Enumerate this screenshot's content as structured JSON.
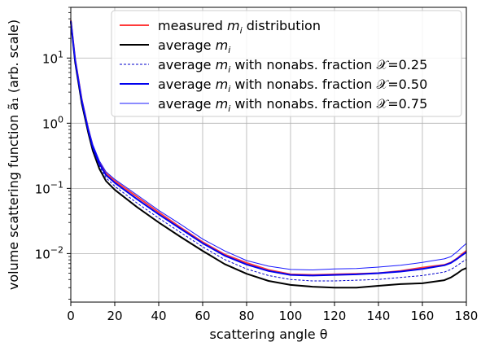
{
  "chart_data": {
    "type": "line",
    "xlabel": "scattering angle θ",
    "ylabel": "volume scattering function ã₁ (arb. scale)",
    "xlim": [
      0,
      180
    ],
    "ylim": [
      0.0018,
      60
    ],
    "y_scale": "log",
    "grid": true,
    "legend_position": "top-right",
    "x_ticks": [
      0,
      20,
      40,
      60,
      80,
      100,
      120,
      140,
      160,
      180
    ],
    "y_ticks": [
      {
        "value": 0.01,
        "base": "10",
        "exp": "−2"
      },
      {
        "value": 0.1,
        "base": "10",
        "exp": "−1"
      },
      {
        "value": 1,
        "base": "10",
        "exp": "0"
      },
      {
        "value": 10,
        "base": "10",
        "exp": "1"
      }
    ],
    "series": [
      {
        "name": "measured mᵢ distribution",
        "legend": {
          "pre": "measured ",
          "var": "m",
          "sub": "i",
          "post": " distribution"
        },
        "color": "#ff3b3b",
        "width": 2.0,
        "dash": "",
        "x": [
          0,
          2,
          5,
          8,
          10,
          13,
          16,
          20,
          30,
          40,
          50,
          60,
          70,
          80,
          90,
          100,
          110,
          120,
          130,
          140,
          150,
          160,
          165,
          170,
          173,
          176,
          178,
          180
        ],
        "y": [
          38,
          9.5,
          2.3,
          0.8,
          0.45,
          0.25,
          0.17,
          0.13,
          0.075,
          0.043,
          0.025,
          0.015,
          0.0097,
          0.0072,
          0.0056,
          0.0048,
          0.0047,
          0.0048,
          0.0049,
          0.005,
          0.0054,
          0.0061,
          0.0064,
          0.0067,
          0.0073,
          0.0085,
          0.0098,
          0.011
        ]
      },
      {
        "name": "average mᵢ",
        "legend": {
          "pre": "average ",
          "var": "m",
          "sub": "i",
          "post": ""
        },
        "color": "#000000",
        "width": 2.0,
        "dash": "",
        "x": [
          0,
          2,
          5,
          8,
          10,
          13,
          16,
          20,
          30,
          40,
          50,
          60,
          70,
          80,
          90,
          100,
          110,
          120,
          130,
          140,
          150,
          160,
          165,
          170,
          173,
          176,
          178,
          180
        ],
        "y": [
          36,
          8.5,
          2.0,
          0.7,
          0.38,
          0.2,
          0.13,
          0.095,
          0.052,
          0.03,
          0.018,
          0.011,
          0.0069,
          0.0049,
          0.0038,
          0.0033,
          0.0031,
          0.003,
          0.003,
          0.0032,
          0.0034,
          0.0035,
          0.0037,
          0.0039,
          0.0043,
          0.005,
          0.0056,
          0.006
        ]
      },
      {
        "name": "average mᵢ with nonabs. fraction 𝒳=0.25",
        "legend": {
          "pre": "average ",
          "var": "m",
          "sub": "i",
          "post": " with nonabs. fraction 𝒳=0.25"
        },
        "color": "#0000cc",
        "width": 1.0,
        "dash": "3,2",
        "x": [
          0,
          2,
          5,
          8,
          10,
          13,
          16,
          20,
          30,
          40,
          50,
          60,
          70,
          80,
          90,
          100,
          110,
          120,
          130,
          140,
          150,
          160,
          165,
          170,
          173,
          176,
          178,
          180
        ],
        "y": [
          36.5,
          8.8,
          2.1,
          0.73,
          0.4,
          0.22,
          0.145,
          0.108,
          0.06,
          0.035,
          0.021,
          0.0127,
          0.0081,
          0.0058,
          0.0046,
          0.004,
          0.0038,
          0.0038,
          0.0039,
          0.004,
          0.0043,
          0.0046,
          0.0049,
          0.0052,
          0.0057,
          0.0066,
          0.0074,
          0.0081
        ]
      },
      {
        "name": "average mᵢ with nonabs. fraction 𝒳=0.50",
        "legend": {
          "pre": "average ",
          "var": "m",
          "sub": "i",
          "post": " with nonabs. fraction 𝒳=0.50"
        },
        "color": "#0000ee",
        "width": 2.0,
        "dash": "",
        "x": [
          0,
          2,
          5,
          8,
          10,
          13,
          16,
          20,
          30,
          40,
          50,
          60,
          70,
          80,
          90,
          100,
          110,
          120,
          130,
          140,
          150,
          160,
          165,
          170,
          173,
          176,
          178,
          180
        ],
        "y": [
          37,
          9.2,
          2.2,
          0.77,
          0.43,
          0.24,
          0.16,
          0.122,
          0.069,
          0.04,
          0.024,
          0.0144,
          0.0093,
          0.0068,
          0.0054,
          0.0047,
          0.0046,
          0.0047,
          0.0048,
          0.005,
          0.0053,
          0.0058,
          0.0062,
          0.0066,
          0.0072,
          0.0084,
          0.0094,
          0.0105
        ]
      },
      {
        "name": "average mᵢ with nonabs. fraction 𝒳=0.75",
        "legend": {
          "pre": "average ",
          "var": "m",
          "sub": "i",
          "post": " with nonabs. fraction 𝒳=0.75"
        },
        "color": "#1a1aff",
        "width": 1.0,
        "dash": "",
        "x": [
          0,
          2,
          5,
          8,
          10,
          13,
          16,
          20,
          30,
          40,
          50,
          60,
          70,
          80,
          90,
          100,
          110,
          120,
          130,
          140,
          150,
          160,
          165,
          170,
          173,
          176,
          178,
          180
        ],
        "y": [
          38,
          9.8,
          2.4,
          0.84,
          0.47,
          0.265,
          0.18,
          0.138,
          0.08,
          0.046,
          0.028,
          0.0167,
          0.011,
          0.0078,
          0.0064,
          0.0057,
          0.0056,
          0.0058,
          0.0059,
          0.0062,
          0.0066,
          0.0073,
          0.0078,
          0.0083,
          0.009,
          0.0108,
          0.0125,
          0.0143
        ]
      }
    ]
  }
}
